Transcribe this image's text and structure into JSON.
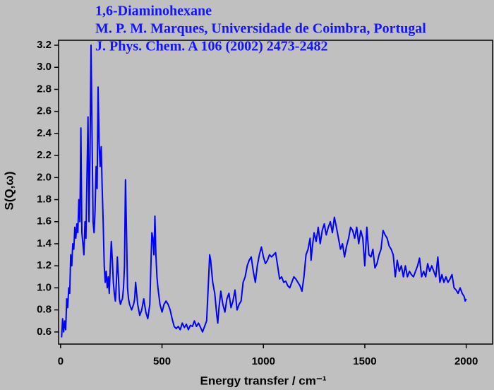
{
  "chart_data": {
    "type": "line",
    "title_lines": [
      "1,6-Diaminohexane",
      "M. P. M. Marques, Universidade de Coimbra, Portugal",
      "J. Phys. Chem. A 106 (2002) 2473-2482"
    ],
    "x_label": "Energy transfer / cm⁻¹",
    "y_label": "S(Q,ω)",
    "xlim": [
      -10,
      2130
    ],
    "ylim": [
      0.49,
      3.245
    ],
    "xticks": [
      0,
      500,
      1000,
      1500,
      2000
    ],
    "yticks": [
      0.6,
      0.8,
      {
        "value": 1.0,
        "label": "1.0"
      },
      1.2,
      1.4,
      1.6,
      1.8,
      {
        "value": 2.0,
        "label": "2.0"
      },
      2.2,
      2.4,
      2.6,
      2.8,
      {
        "value": 3.0,
        "label": "3.0"
      },
      3.2
    ],
    "color": "#0000ff",
    "x": [
      5,
      10,
      15,
      20,
      25,
      30,
      35,
      40,
      45,
      50,
      55,
      60,
      65,
      70,
      75,
      80,
      85,
      90,
      95,
      100,
      105,
      110,
      115,
      120,
      125,
      130,
      135,
      140,
      145,
      150,
      155,
      160,
      165,
      170,
      175,
      180,
      185,
      190,
      195,
      200,
      205,
      210,
      215,
      220,
      225,
      230,
      235,
      240,
      245,
      250,
      255,
      260,
      265,
      270,
      275,
      280,
      285,
      290,
      295,
      300,
      305,
      310,
      315,
      320,
      325,
      330,
      335,
      340,
      350,
      360,
      365,
      370,
      375,
      380,
      390,
      400,
      410,
      420,
      430,
      440,
      445,
      450,
      455,
      460,
      465,
      470,
      475,
      480,
      490,
      500,
      510,
      520,
      530,
      540,
      550,
      560,
      570,
      580,
      590,
      600,
      610,
      620,
      630,
      640,
      650,
      660,
      670,
      680,
      690,
      700,
      710,
      720,
      730,
      735,
      740,
      750,
      760,
      770,
      775,
      780,
      790,
      800,
      810,
      820,
      830,
      840,
      850,
      860,
      870,
      880,
      890,
      900,
      910,
      920,
      930,
      940,
      950,
      960,
      970,
      980,
      990,
      1000,
      1010,
      1020,
      1030,
      1040,
      1050,
      1060,
      1070,
      1080,
      1090,
      1100,
      1110,
      1120,
      1130,
      1140,
      1150,
      1160,
      1170,
      1180,
      1190,
      1200,
      1210,
      1220,
      1230,
      1235,
      1240,
      1250,
      1260,
      1270,
      1280,
      1290,
      1300,
      1310,
      1320,
      1330,
      1340,
      1350,
      1360,
      1370,
      1380,
      1390,
      1400,
      1410,
      1420,
      1430,
      1440,
      1450,
      1460,
      1470,
      1480,
      1490,
      1500,
      1510,
      1520,
      1530,
      1540,
      1550,
      1560,
      1570,
      1580,
      1590,
      1600,
      1610,
      1620,
      1630,
      1640,
      1650,
      1660,
      1670,
      1680,
      1690,
      1700,
      1710,
      1720,
      1730,
      1740,
      1750,
      1760,
      1770,
      1780,
      1790,
      1800,
      1810,
      1820,
      1830,
      1840,
      1850,
      1860,
      1870,
      1880,
      1890,
      1900,
      1910,
      1920,
      1930,
      1940,
      1950,
      1960,
      1970,
      1980,
      1990,
      1995,
      2000
    ],
    "values": [
      0.55,
      0.72,
      0.6,
      0.7,
      0.62,
      0.9,
      0.82,
      1.0,
      0.95,
      1.3,
      1.2,
      1.4,
      1.35,
      1.55,
      1.45,
      1.58,
      1.5,
      1.8,
      1.6,
      2.45,
      1.5,
      1.4,
      1.3,
      1.6,
      1.45,
      2.0,
      2.55,
      1.6,
      2.2,
      3.2,
      2.4,
      1.6,
      1.5,
      1.7,
      2.1,
      1.9,
      2.82,
      2.3,
      2.1,
      2.28,
      1.9,
      1.6,
      1.2,
      1.05,
      1.15,
      1.0,
      1.1,
      0.95,
      1.2,
      1.42,
      1.25,
      1.05,
      0.95,
      0.88,
      1.05,
      1.28,
      1.1,
      0.9,
      0.85,
      0.88,
      0.9,
      1.0,
      1.2,
      1.98,
      1.5,
      1.0,
      0.9,
      0.85,
      0.8,
      0.85,
      0.9,
      1.05,
      0.95,
      0.85,
      0.75,
      0.8,
      0.9,
      0.78,
      0.72,
      0.85,
      1.2,
      1.5,
      1.45,
      1.3,
      1.65,
      1.3,
      1.1,
      1.0,
      0.85,
      0.78,
      0.85,
      0.88,
      0.85,
      0.8,
      0.72,
      0.65,
      0.63,
      0.65,
      0.62,
      0.68,
      0.64,
      0.67,
      0.62,
      0.66,
      0.65,
      0.7,
      0.65,
      0.68,
      0.64,
      0.6,
      0.65,
      0.7,
      1.1,
      1.3,
      1.25,
      1.05,
      0.95,
      0.75,
      0.68,
      0.8,
      0.97,
      0.85,
      0.78,
      0.9,
      0.95,
      0.82,
      0.88,
      0.98,
      0.8,
      0.85,
      0.88,
      1.05,
      1.1,
      1.2,
      1.25,
      1.28,
      1.15,
      1.05,
      1.2,
      1.3,
      1.37,
      1.28,
      1.22,
      1.25,
      1.3,
      1.28,
      1.3,
      1.32,
      1.2,
      1.08,
      1.1,
      1.05,
      1.06,
      1.02,
      1.0,
      1.05,
      1.1,
      1.08,
      1.05,
      1.02,
      0.97,
      1.1,
      1.3,
      1.35,
      1.45,
      1.25,
      1.35,
      1.5,
      1.42,
      1.55,
      1.4,
      1.52,
      1.58,
      1.48,
      1.55,
      1.6,
      1.5,
      1.64,
      1.55,
      1.45,
      1.35,
      1.4,
      1.28,
      1.38,
      1.45,
      1.55,
      1.52,
      1.45,
      1.55,
      1.4,
      1.52,
      1.45,
      1.2,
      1.55,
      1.3,
      1.28,
      1.35,
      1.18,
      1.22,
      1.3,
      1.35,
      1.52,
      1.48,
      1.45,
      1.38,
      1.35,
      1.3,
      1.1,
      1.25,
      1.15,
      1.2,
      1.1,
      1.2,
      1.1,
      1.15,
      1.12,
      1.1,
      1.15,
      1.2,
      1.27,
      1.1,
      1.15,
      1.1,
      1.22,
      1.15,
      1.2,
      1.15,
      1.1,
      1.28,
      1.05,
      1.12,
      1.05,
      1.1,
      1.05,
      1.08,
      1.12,
      1.0,
      0.98,
      0.95,
      1.0,
      0.95,
      0.92,
      0.88,
      0.9
    ]
  }
}
